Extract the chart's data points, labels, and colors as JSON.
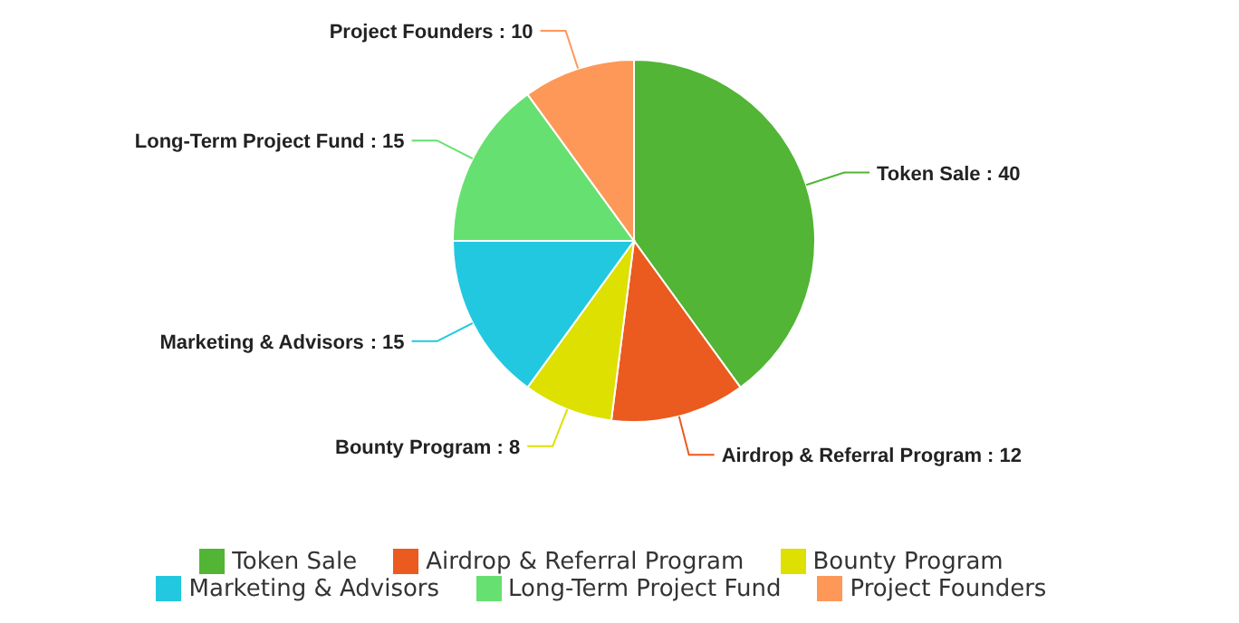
{
  "chart_data": {
    "type": "pie",
    "categories": [
      "Token Sale",
      "Airdrop & Referral Program",
      "Bounty Program",
      "Marketing & Advisors",
      "Long-Term Project Fund",
      "Project Founders"
    ],
    "values": [
      40,
      12,
      8,
      15,
      15,
      10
    ],
    "colors": [
      "#52b535",
      "#eb5a1e",
      "#dde000",
      "#22c8e0",
      "#66e070",
      "#fd9858"
    ],
    "value_labels": [
      ": 40",
      ": 12",
      ": 8",
      ": 15",
      ": 15",
      ": 10"
    ],
    "legend": "bottom"
  }
}
